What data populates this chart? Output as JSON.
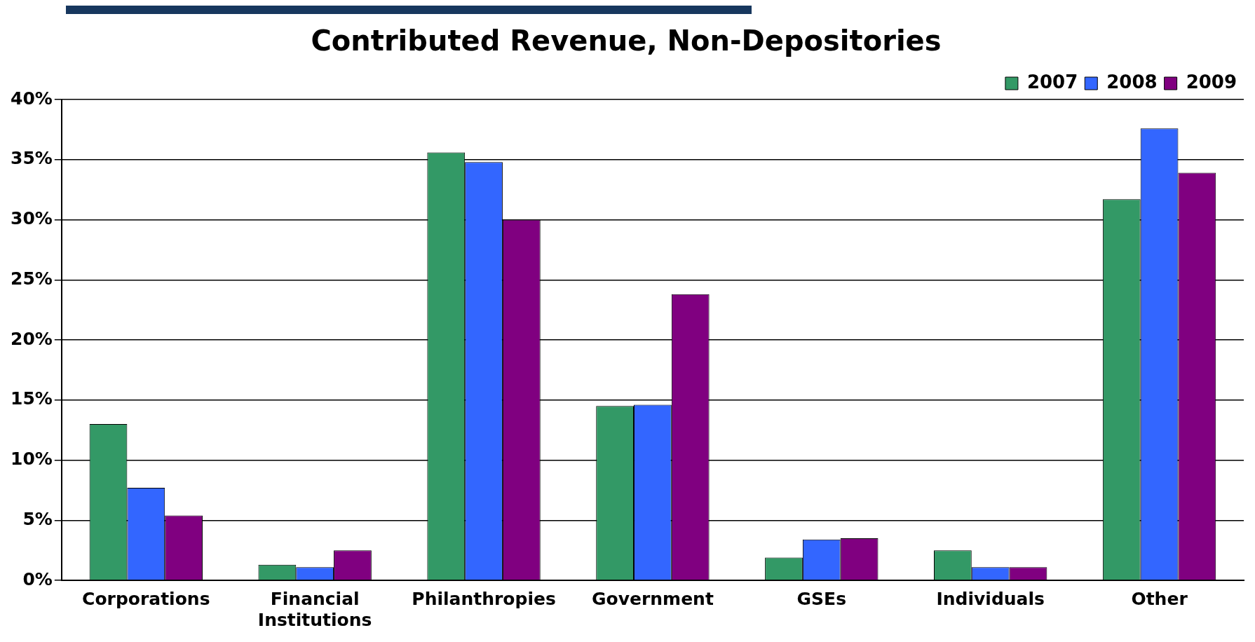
{
  "chart_data": {
    "type": "bar",
    "title": "Contributed Revenue, Non-Depositories",
    "categories": [
      "Corporations",
      "Financial Institutions",
      "Philanthropies",
      "Government",
      "GSEs",
      "Individuals",
      "Other"
    ],
    "series": [
      {
        "name": "2007",
        "color": "#339966",
        "values": [
          13.0,
          1.3,
          35.6,
          14.5,
          1.9,
          2.5,
          31.7
        ]
      },
      {
        "name": "2008",
        "color": "#3366ff",
        "values": [
          7.7,
          1.1,
          34.8,
          14.6,
          3.4,
          1.1,
          37.6
        ]
      },
      {
        "name": "2009",
        "color": "#800080",
        "values": [
          5.4,
          2.5,
          30.0,
          23.8,
          3.5,
          1.1,
          33.9
        ]
      }
    ],
    "ylim": [
      0,
      40
    ],
    "yticks": [
      {
        "value": 0,
        "label": "0%"
      },
      {
        "value": 5,
        "label": "5%"
      },
      {
        "value": 10,
        "label": "10%"
      },
      {
        "value": 15,
        "label": "15%"
      },
      {
        "value": 20,
        "label": "20%"
      },
      {
        "value": 25,
        "label": "25%"
      },
      {
        "value": 30,
        "label": "30%"
      },
      {
        "value": 35,
        "label": "35%"
      },
      {
        "value": 40,
        "label": "40%"
      }
    ],
    "grid": "y",
    "legend": "top right"
  }
}
